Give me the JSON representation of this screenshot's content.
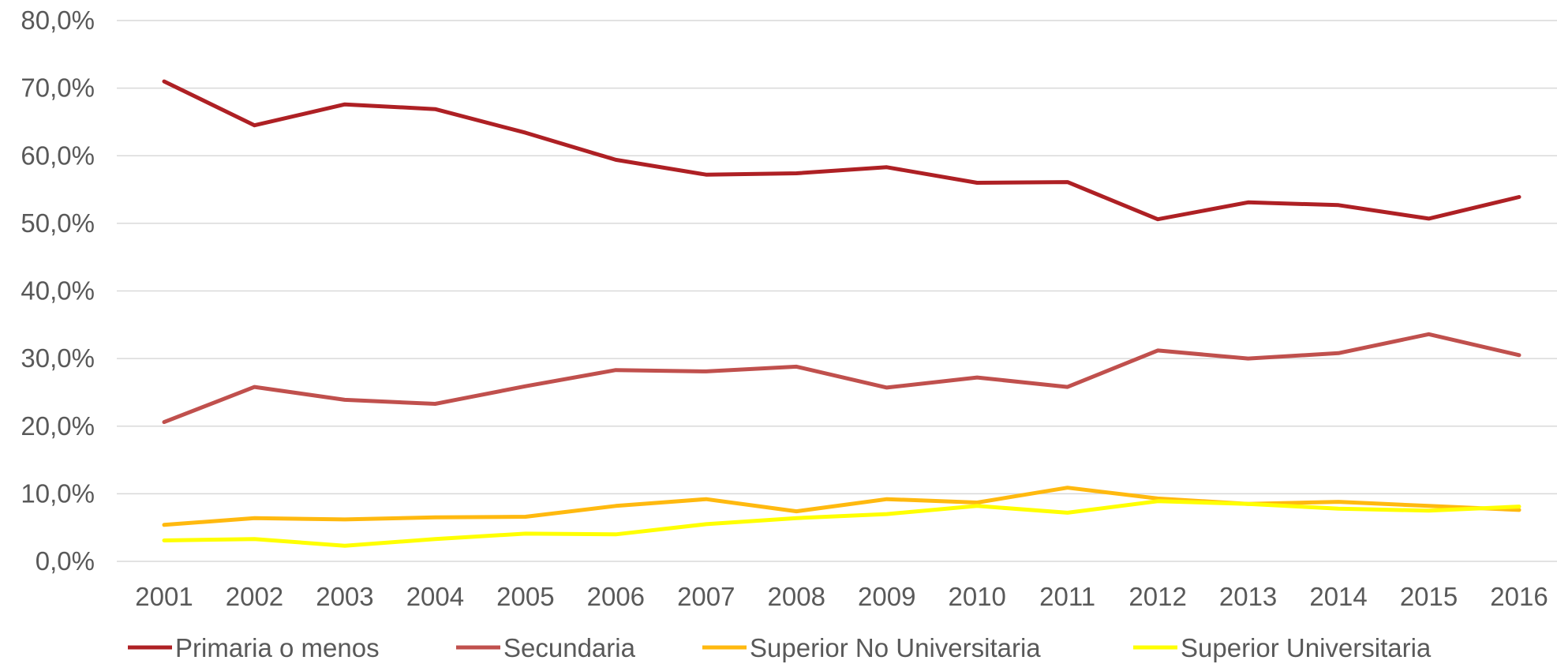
{
  "chart_data": {
    "type": "line",
    "x": [
      "2001",
      "2002",
      "2003",
      "2004",
      "2005",
      "2006",
      "2007",
      "2008",
      "2009",
      "2010",
      "2011",
      "2012",
      "2013",
      "2014",
      "2015",
      "2016"
    ],
    "ylim": [
      0,
      80
    ],
    "y_ticks": [
      0,
      10,
      20,
      30,
      40,
      50,
      60,
      70,
      80
    ],
    "y_tick_labels": [
      "0,0%",
      "10,0%",
      "20,0%",
      "30,0%",
      "40,0%",
      "50,0%",
      "60,0%",
      "70,0%",
      "80,0%"
    ],
    "grid": true,
    "legend_position": "bottom",
    "series": [
      {
        "name": "Primaria o menos",
        "color": "#AE2024",
        "values": [
          71.0,
          64.5,
          67.6,
          66.9,
          63.4,
          59.4,
          57.2,
          57.4,
          58.3,
          56.0,
          56.1,
          50.6,
          53.1,
          52.7,
          50.7,
          53.9
        ]
      },
      {
        "name": "Secundaria",
        "color": "#C0504D",
        "values": [
          20.6,
          25.8,
          23.9,
          23.3,
          25.9,
          28.3,
          28.1,
          28.8,
          25.7,
          27.2,
          25.8,
          31.2,
          30.0,
          30.8,
          33.6,
          30.5
        ]
      },
      {
        "name": "Superior No Universitaria",
        "color": "#FFB90F",
        "values": [
          5.4,
          6.4,
          6.2,
          6.5,
          6.6,
          8.2,
          9.2,
          7.4,
          9.2,
          8.7,
          10.9,
          9.3,
          8.5,
          8.8,
          8.2,
          7.6
        ]
      },
      {
        "name": "Superior Universitaria",
        "color": "#FFFF00",
        "values": [
          3.1,
          3.3,
          2.3,
          3.3,
          4.1,
          4.0,
          5.5,
          6.4,
          7.0,
          8.2,
          7.2,
          8.9,
          8.5,
          7.8,
          7.5,
          8.1
        ]
      }
    ]
  }
}
